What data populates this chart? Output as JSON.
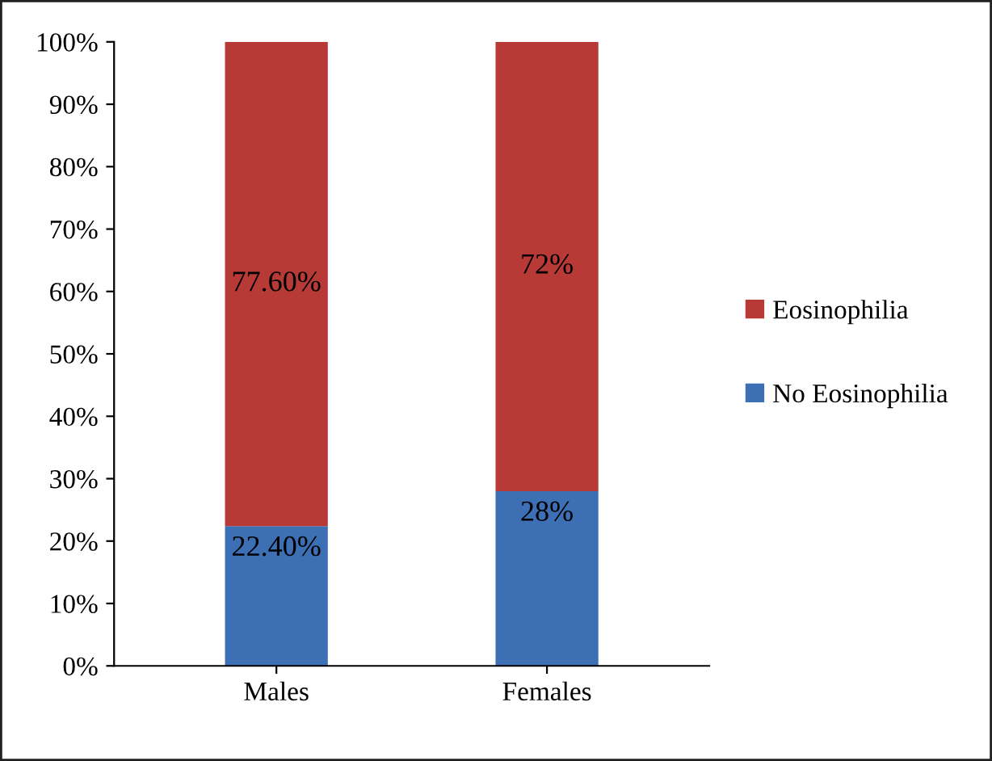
{
  "chart_data": {
    "type": "bar",
    "stacked": true,
    "categories": [
      "Males",
      "Females"
    ],
    "series": [
      {
        "name": "No Eosinophilia",
        "color": "#3d6fb5",
        "values": [
          22.4,
          28
        ],
        "value_labels": [
          "22.40%",
          "28%"
        ]
      },
      {
        "name": "Eosinophilia",
        "color": "#b83a36",
        "values": [
          77.6,
          72
        ],
        "value_labels": [
          "77.60%",
          "72%"
        ]
      }
    ],
    "ylim": [
      0,
      100
    ],
    "yticks": [
      {
        "value": 0,
        "label": "0%"
      },
      {
        "value": 10,
        "label": "10%"
      },
      {
        "value": 20,
        "label": "20%"
      },
      {
        "value": 30,
        "label": "30%"
      },
      {
        "value": 40,
        "label": "40%"
      },
      {
        "value": 50,
        "label": "50%"
      },
      {
        "value": 60,
        "label": "60%"
      },
      {
        "value": 70,
        "label": "70%"
      },
      {
        "value": 80,
        "label": "80%"
      },
      {
        "value": 90,
        "label": "90%"
      },
      {
        "value": 100,
        "label": "100%"
      }
    ],
    "grid": false,
    "legend": "right"
  }
}
